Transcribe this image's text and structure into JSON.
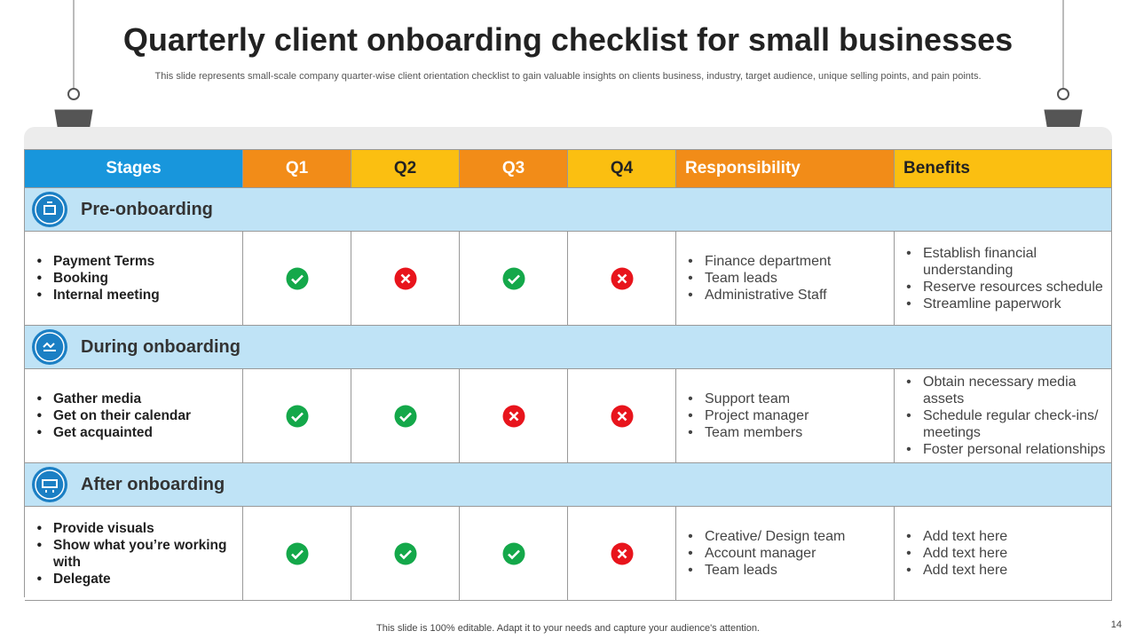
{
  "title": "Quarterly client onboarding checklist for small businesses",
  "subtitle": "This slide represents small-scale company quarter-wise client orientation checklist to gain valuable insights on clients business, industry, target audience, unique selling points, and pain points.",
  "table": {
    "header": [
      "Stages",
      "Q1",
      "Q2",
      "Q3",
      "Q4",
      "Responsibility",
      "Benefits"
    ],
    "sections": [
      {
        "name": "Pre-onboarding",
        "stages": [
          "Payment Terms",
          "Booking",
          "Internal meeting"
        ],
        "quarters": [
          true,
          false,
          true,
          false
        ],
        "responsibility": [
          "Finance department",
          "Team leads",
          "Administrative Staff"
        ],
        "benefits": [
          "Establish financial understanding",
          "Reserve resources schedule",
          "Streamline paperwork"
        ]
      },
      {
        "name": "During onboarding",
        "stages": [
          "Gather media",
          "Get on their calendar",
          "Get acquainted"
        ],
        "quarters": [
          true,
          true,
          false,
          false
        ],
        "responsibility": [
          "Support team",
          "Project manager",
          "Team members"
        ],
        "benefits": [
          "Obtain necessary media assets",
          "Schedule regular check-ins/ meetings",
          "Foster personal relationships"
        ]
      },
      {
        "name": "After onboarding",
        "stages": [
          "Provide visuals",
          "Show what you’re working with",
          "Delegate"
        ],
        "quarters": [
          true,
          true,
          true,
          false
        ],
        "responsibility": [
          "Creative/ Design team",
          "Account manager",
          "Team leads"
        ],
        "benefits": [
          "Add text here",
          "Add text here",
          "Add text here"
        ]
      }
    ]
  },
  "footer": "This slide is 100% editable. Adapt it to your needs and capture your audience's attention.",
  "page_number": "14"
}
